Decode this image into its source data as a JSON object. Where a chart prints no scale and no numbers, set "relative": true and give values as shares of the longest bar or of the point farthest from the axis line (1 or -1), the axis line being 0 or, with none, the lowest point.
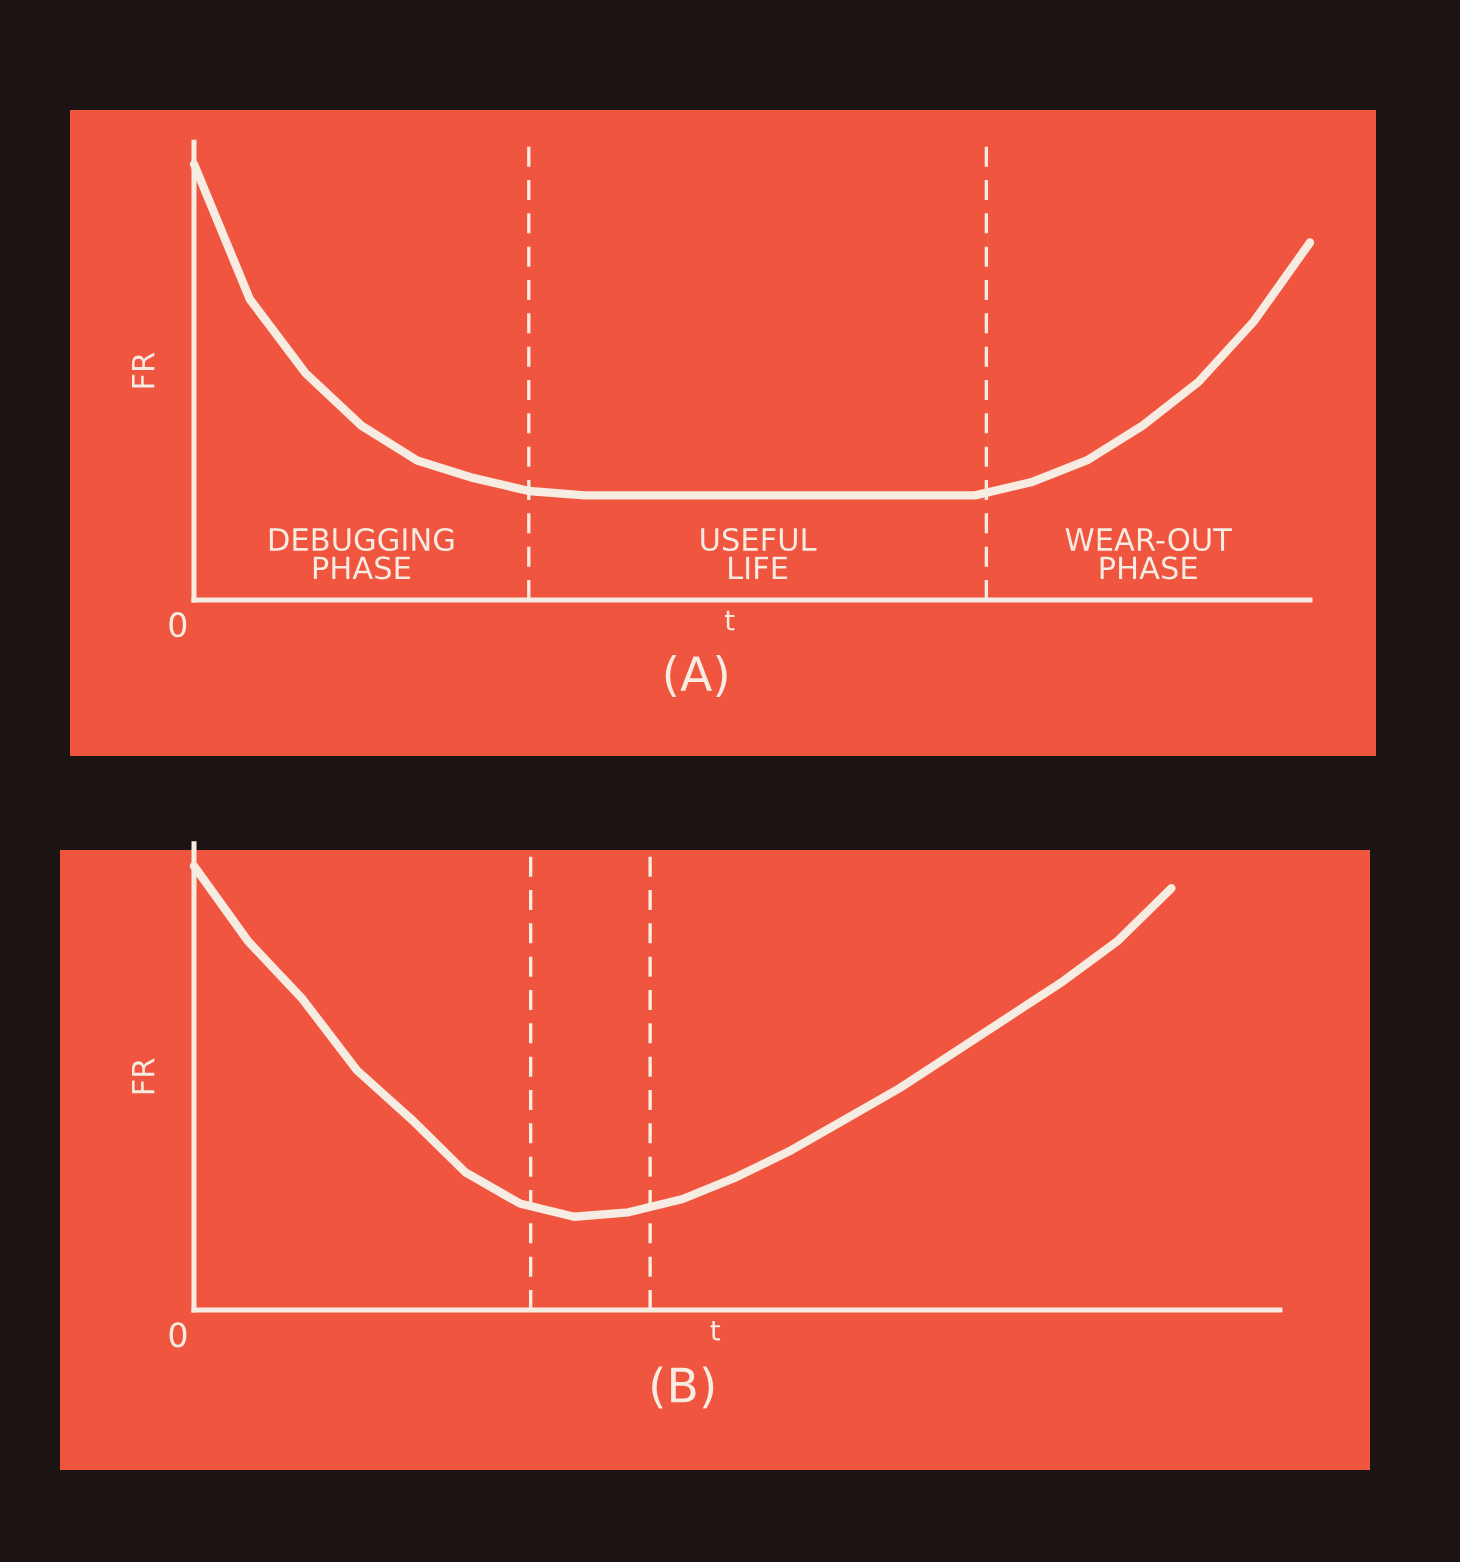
{
  "chart_data": [
    {
      "type": "line",
      "title": "(A)",
      "xlabel": "t",
      "ylabel": "FR",
      "relative": true,
      "categories": [
        null,
        null,
        null,
        null,
        null,
        null,
        null,
        null,
        null,
        null,
        null,
        null,
        null,
        null,
        null,
        null,
        null,
        null,
        null,
        null,
        null
      ],
      "series": [
        {
          "color": "#f7ece2",
          "values": [
            1.0,
            0.69,
            0.52,
            0.4,
            0.32,
            0.28,
            0.25,
            0.24,
            0.24,
            0.24,
            0.24,
            0.24,
            0.24,
            0.24,
            0.24,
            0.27,
            0.32,
            0.4,
            0.5,
            0.64,
            0.82
          ]
        }
      ],
      "annotations": [
        "0",
        "DEBUGGING\nPHASE",
        "USEFUL\nLIFE",
        "WEAR-OUT\nPHASE"
      ]
    },
    {
      "type": "line",
      "title": "(B)",
      "xlabel": "t",
      "ylabel": "FR",
      "relative": true,
      "categories": [
        null,
        null,
        null,
        null,
        null,
        null,
        null,
        null,
        null,
        null,
        null,
        null,
        null,
        null,
        null,
        null,
        null,
        null,
        null,
        null,
        null
      ],
      "series": [
        {
          "color": "#f7ece2",
          "values": [
            1.0,
            0.83,
            0.7,
            0.54,
            0.43,
            0.31,
            0.24,
            0.21,
            0.22,
            0.25,
            0.3,
            0.36,
            0.43,
            0.5,
            0.58,
            0.66,
            0.74,
            0.83,
            0.95,
            null,
            null
          ]
        }
      ],
      "annotations": [
        "0"
      ]
    }
  ]
}
